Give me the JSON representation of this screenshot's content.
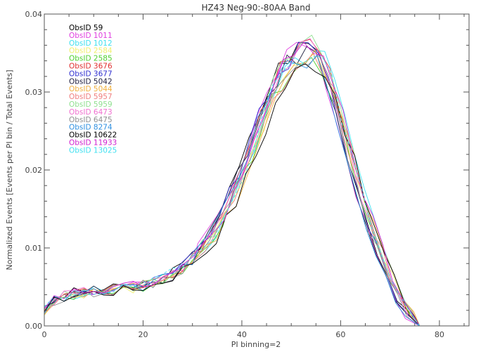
{
  "chart_data": {
    "type": "line",
    "title": "HZ43 Neg-90:-80AA Band",
    "xlabel": "PI binning=2",
    "ylabel": "Normalized Events [Events per PI bin / Total Events]",
    "xlim": [
      0,
      86
    ],
    "ylim": [
      0,
      0.04
    ],
    "xticks": [
      0,
      20,
      40,
      60,
      80
    ],
    "yticks": [
      0.0,
      0.01,
      0.02,
      0.03,
      0.04
    ],
    "xtick_labels": [
      "0",
      "20",
      "40",
      "60",
      "80"
    ],
    "ytick_labels": [
      "0.00",
      "0.01",
      "0.02",
      "0.03",
      "0.04"
    ],
    "legend_position": "top-left",
    "grid": false,
    "series": [
      {
        "name": "ObsID 59",
        "color": "#000000",
        "dashed": false
      },
      {
        "name": "ObsID 1011",
        "color": "#e040e0",
        "dashed": false
      },
      {
        "name": "ObsID 1012",
        "color": "#40e0f0",
        "dashed": false
      },
      {
        "name": "ObsID 2584",
        "color": "#f0f070",
        "dashed": false
      },
      {
        "name": "ObsID 2585",
        "color": "#50d030",
        "dashed": false
      },
      {
        "name": "ObsID 3676",
        "color": "#e03030",
        "dashed": false
      },
      {
        "name": "ObsID 3677",
        "color": "#3030d0",
        "dashed": false
      },
      {
        "name": "ObsID 5042",
        "color": "#202040",
        "dashed": false
      },
      {
        "name": "ObsID 5044",
        "color": "#f0b040",
        "dashed": false
      },
      {
        "name": "ObsID 5957",
        "color": "#f08080",
        "dashed": false
      },
      {
        "name": "ObsID 5959",
        "color": "#90e090",
        "dashed": false
      },
      {
        "name": "ObsID 6473",
        "color": "#f070d0",
        "dashed": false
      },
      {
        "name": "ObsID 6475",
        "color": "#909090",
        "dashed": false
      },
      {
        "name": "ObsID 8274",
        "color": "#3090e0",
        "dashed": false
      },
      {
        "name": "ObsID 10622",
        "color": "#000000",
        "dashed": false
      },
      {
        "name": "ObsID 11933",
        "color": "#d020d0",
        "dashed": false
      },
      {
        "name": "ObsID 13025",
        "color": "#40e0f0",
        "dashed": true
      }
    ],
    "x": [
      0,
      2,
      4,
      6,
      8,
      10,
      12,
      14,
      16,
      18,
      20,
      22,
      24,
      26,
      28,
      30,
      32,
      34,
      36,
      38,
      40,
      42,
      44,
      46,
      48,
      50,
      52,
      54,
      56,
      58,
      60,
      62,
      64,
      66,
      68,
      70,
      72,
      74,
      76,
      78,
      80,
      82,
      84,
      86
    ],
    "base_profile": [
      0.002,
      0.0033,
      0.0038,
      0.0041,
      0.0043,
      0.0044,
      0.0045,
      0.0046,
      0.0047,
      0.0049,
      0.0052,
      0.0055,
      0.006,
      0.0066,
      0.0075,
      0.0086,
      0.01,
      0.0118,
      0.014,
      0.0165,
      0.0195,
      0.0227,
      0.0262,
      0.0295,
      0.032,
      0.0336,
      0.0345,
      0.035,
      0.034,
      0.031,
      0.0265,
      0.0215,
      0.017,
      0.013,
      0.0095,
      0.0062,
      0.0035,
      0.0015,
      0.0,
      0.0,
      0.0,
      0.0,
      0.0,
      0.0
    ]
  }
}
